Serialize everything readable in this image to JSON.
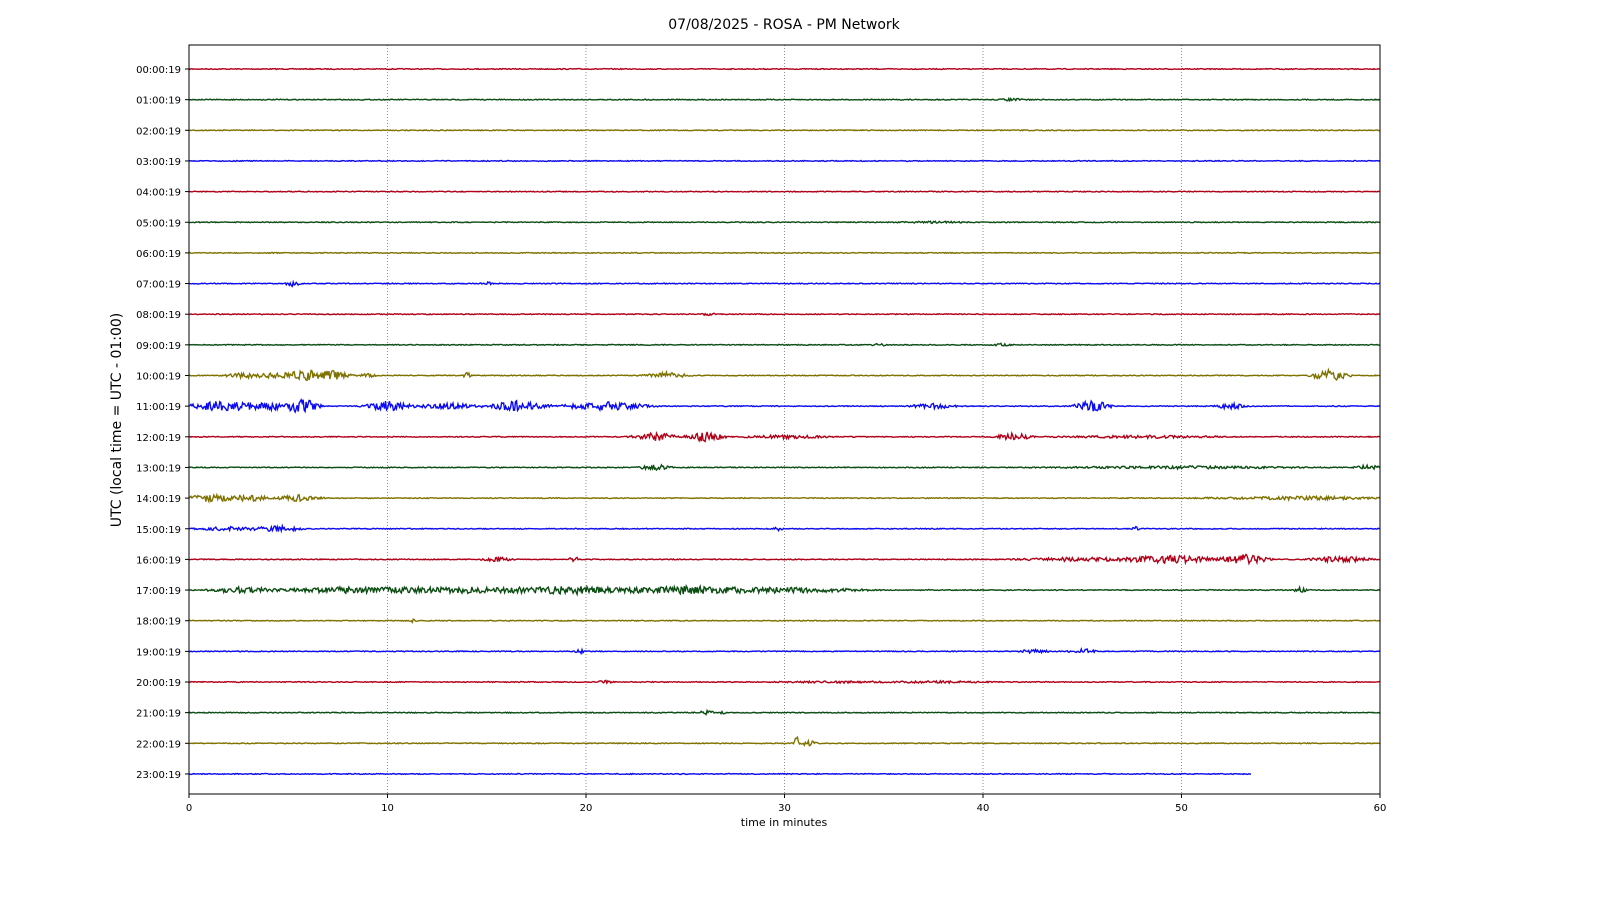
{
  "chart_data": {
    "type": "line",
    "title": "07/08/2025 - ROSA - PM Network",
    "xlabel": "time in minutes",
    "ylabel": "UTC (local time = UTC - 01:00)",
    "xlim": [
      0,
      60
    ],
    "xticks": [
      "0",
      "10",
      "20",
      "30",
      "40",
      "50",
      "60"
    ],
    "grid": "vertical dotted at x ticks",
    "color_cycle": [
      "#b00018",
      "#0b4d12",
      "#7f7200",
      "#0a0af5"
    ],
    "rows": [
      {
        "label": "00:00:19",
        "end_minute": 60,
        "bursts": []
      },
      {
        "label": "01:00:19",
        "end_minute": 60,
        "bursts": [
          [
            41.5,
            1,
            1
          ]
        ]
      },
      {
        "label": "02:00:19",
        "end_minute": 60,
        "bursts": []
      },
      {
        "label": "03:00:19",
        "end_minute": 60,
        "bursts": []
      },
      {
        "label": "04:00:19",
        "end_minute": 60,
        "bursts": []
      },
      {
        "label": "05:00:19",
        "end_minute": 60,
        "bursts": [
          [
            37.5,
            2,
            0.8
          ]
        ]
      },
      {
        "label": "06:00:19",
        "end_minute": 60,
        "bursts": []
      },
      {
        "label": "07:00:19",
        "end_minute": 60,
        "bursts": [
          [
            5.2,
            0.5,
            2.5
          ],
          [
            15,
            0.4,
            1.5
          ]
        ]
      },
      {
        "label": "08:00:19",
        "end_minute": 60,
        "bursts": [
          [
            26.2,
            0.4,
            1.5
          ]
        ]
      },
      {
        "label": "09:00:19",
        "end_minute": 60,
        "bursts": [
          [
            41,
            0.5,
            1.5
          ],
          [
            34.8,
            0.5,
            1
          ]
        ]
      },
      {
        "label": "10:00:19",
        "end_minute": 60,
        "bursts": [
          [
            3,
            1.5,
            3
          ],
          [
            5.5,
            2,
            4
          ],
          [
            7,
            1.5,
            5
          ],
          [
            9,
            0.5,
            3
          ],
          [
            14,
            0.3,
            3
          ],
          [
            24,
            1.5,
            3
          ],
          [
            57.5,
            1.2,
            6
          ]
        ]
      },
      {
        "label": "11:00:19",
        "end_minute": 60,
        "bursts": [
          [
            1.5,
            2,
            5
          ],
          [
            4,
            2,
            4
          ],
          [
            5.8,
            1,
            8
          ],
          [
            10,
            1.5,
            5
          ],
          [
            13,
            2,
            3
          ],
          [
            16.5,
            2,
            5
          ],
          [
            21,
            3,
            4
          ],
          [
            37.5,
            1.5,
            2.5
          ],
          [
            45.5,
            1.2,
            6
          ],
          [
            52.5,
            1,
            3
          ]
        ]
      },
      {
        "label": "12:00:19",
        "end_minute": 60,
        "bursts": [
          [
            23.5,
            1.5,
            4
          ],
          [
            26,
            1.2,
            5
          ],
          [
            41.5,
            1.2,
            4
          ],
          [
            30,
            3,
            1.5
          ],
          [
            48,
            5,
            1.2
          ]
        ]
      },
      {
        "label": "13:00:19",
        "end_minute": 60,
        "bursts": [
          [
            23.5,
            1,
            3
          ],
          [
            59.5,
            1,
            3
          ],
          [
            50,
            8,
            1.2
          ]
        ]
      },
      {
        "label": "14:00:19",
        "end_minute": 60,
        "bursts": [
          [
            1,
            1.5,
            4
          ],
          [
            3,
            1.5,
            3
          ],
          [
            5.5,
            1.5,
            3
          ],
          [
            56,
            6,
            1.5
          ]
        ]
      },
      {
        "label": "15:00:19",
        "end_minute": 60,
        "bursts": [
          [
            2,
            2,
            2
          ],
          [
            4.5,
            1.5,
            3
          ],
          [
            29.7,
            0.3,
            2
          ],
          [
            47.7,
            0.3,
            2
          ]
        ]
      },
      {
        "label": "16:00:19",
        "end_minute": 60,
        "bursts": [
          [
            19.4,
            0.3,
            4
          ],
          [
            15.5,
            1,
            2
          ],
          [
            45,
            4,
            2
          ],
          [
            49.5,
            3,
            4
          ],
          [
            53.2,
            1.5,
            5
          ],
          [
            58,
            2,
            3
          ]
        ]
      },
      {
        "label": "17:00:19",
        "end_minute": 60,
        "bursts": [
          [
            2.5,
            2,
            3
          ],
          [
            8,
            5,
            3
          ],
          [
            14,
            5,
            3
          ],
          [
            19.5,
            4,
            4
          ],
          [
            25,
            4,
            4
          ],
          [
            30,
            5,
            3
          ],
          [
            56,
            0.4,
            3
          ]
        ]
      },
      {
        "label": "18:00:19",
        "end_minute": 60,
        "bursts": [
          [
            11.3,
            0.3,
            2
          ]
        ]
      },
      {
        "label": "19:00:19",
        "end_minute": 60,
        "bursts": [
          [
            19.7,
            0.3,
            2
          ],
          [
            42.5,
            1,
            2
          ],
          [
            45,
            0.8,
            3
          ]
        ]
      },
      {
        "label": "20:00:19",
        "end_minute": 60,
        "bursts": [
          [
            21,
            0.5,
            1.5
          ],
          [
            33,
            4,
            0.8
          ],
          [
            38,
            3,
            0.8
          ]
        ]
      },
      {
        "label": "21:00:19",
        "end_minute": 60,
        "bursts": [
          [
            26,
            0.6,
            2
          ],
          [
            26.9,
            0.2,
            1.5
          ]
        ]
      },
      {
        "label": "22:00:19",
        "end_minute": 60,
        "bursts": [
          [
            30.6,
            0.15,
            12
          ],
          [
            31.2,
            0.5,
            3
          ]
        ]
      },
      {
        "label": "23:00:19",
        "end_minute": 53.5,
        "bursts": []
      }
    ]
  }
}
